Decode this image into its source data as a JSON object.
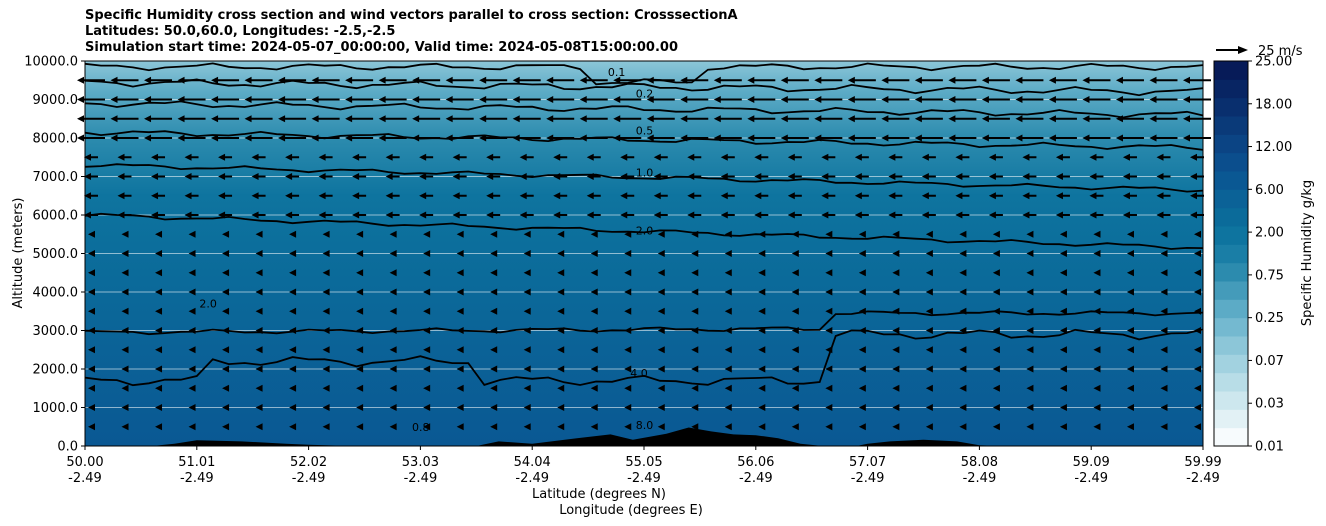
{
  "chart_data": {
    "type": "heatmap",
    "title_lines": [
      "Specific Humidity cross section and wind vectors parallel to cross section: CrosssectionA",
      "Latitudes: 50.0,60.0, Longitudes: -2.5,-2.5",
      "Simulation start time: 2024-05-07_00:00:00, Valid time: 2024-05-08T15:00:00.00"
    ],
    "ylabel": "Altitude (meters)",
    "xlabel_lat": "Latitude (degrees N)",
    "xlabel_lon": "Longitude (degrees E)",
    "ylim": [
      0,
      10000
    ],
    "y_ticks": [
      "0.0",
      "1000.0",
      "2000.0",
      "3000.0",
      "4000.0",
      "5000.0",
      "6000.0",
      "7000.0",
      "8000.0",
      "9000.0",
      "10000.0"
    ],
    "x_ticks": [
      {
        "lat": "50.00",
        "lon": "-2.49"
      },
      {
        "lat": "51.01",
        "lon": "-2.49"
      },
      {
        "lat": "52.02",
        "lon": "-2.49"
      },
      {
        "lat": "53.03",
        "lon": "-2.49"
      },
      {
        "lat": "54.04",
        "lon": "-2.49"
      },
      {
        "lat": "55.05",
        "lon": "-2.49"
      },
      {
        "lat": "56.06",
        "lon": "-2.49"
      },
      {
        "lat": "57.07",
        "lon": "-2.49"
      },
      {
        "lat": "58.08",
        "lon": "-2.49"
      },
      {
        "lat": "59.09",
        "lon": "-2.49"
      },
      {
        "lat": "59.99",
        "lon": "-2.49"
      }
    ],
    "colorbar_label": "Specific Humidity g/kg",
    "colorbar_ticks": [
      "0.01",
      "0.03",
      "0.07",
      "0.25",
      "0.75",
      "2.00",
      "6.00",
      "12.00",
      "18.00",
      "25.00"
    ],
    "colorbar_colors": [
      "#f7fbfd",
      "#e2f1f5",
      "#cde7ee",
      "#b8dde7",
      "#a2d2e0",
      "#8cc6d8",
      "#74b9d0",
      "#5cabc6",
      "#449bba",
      "#2c8bae",
      "#1a7ea6",
      "#0e749f",
      "#0b6b9a",
      "#0b6297",
      "#0a5893",
      "#0b4e8d",
      "#0b4484",
      "#0a3a79",
      "#092f6e",
      "#082563",
      "#071b58"
    ],
    "quiver_key": "25 m/s",
    "contour_labels": [
      {
        "text": "0.1",
        "alt": 9720,
        "lat": 54.75
      },
      {
        "text": "0.2",
        "alt": 9150,
        "lat": 55.0
      },
      {
        "text": "0.5",
        "alt": 8200,
        "lat": 55.0
      },
      {
        "text": "1.0",
        "alt": 7100,
        "lat": 55.0
      },
      {
        "text": "2.0",
        "alt": 5600,
        "lat": 55.0
      },
      {
        "text": "4.0",
        "alt": 1900,
        "lat": 54.95
      },
      {
        "text": "8.0",
        "alt": 550,
        "lat": 55.0
      },
      {
        "text": "2.0",
        "alt": 3700,
        "lat": 51.1
      },
      {
        "text": "0.8",
        "alt": 500,
        "lat": 53.0
      }
    ],
    "wind_vectors_direction": "southward (negative along cross section)"
  }
}
